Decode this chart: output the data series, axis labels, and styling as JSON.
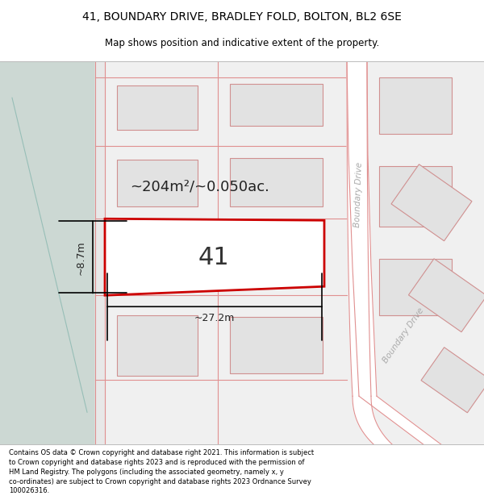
{
  "title_line1": "41, BOUNDARY DRIVE, BRADLEY FOLD, BOLTON, BL2 6SE",
  "title_line2": "Map shows position and indicative extent of the property.",
  "footer_text": "Contains OS data © Crown copyright and database right 2021. This information is subject to Crown copyright and database rights 2023 and is reproduced with the permission of HM Land Registry. The polygons (including the associated geometry, namely x, y co-ordinates) are subject to Crown copyright and database rights 2023 Ordnance Survey 100026316.",
  "map_bg": "#f0f0f0",
  "green_area_color": "#ccd8d3",
  "plot_border_color": "#e09090",
  "highlight_color": "#cc0000",
  "highlight_fill": "#ffffff",
  "building_fill": "#e2e2e2",
  "building_border": "#d09090",
  "road_fill": "#ffffff",
  "area_text": "~204m²/~0.050ac.",
  "label_41": "41",
  "dim_width": "~27.2m",
  "dim_height": "~8.7m",
  "road_label_upper": "Boundary Drive",
  "road_label_lower": "Boundary Drive"
}
